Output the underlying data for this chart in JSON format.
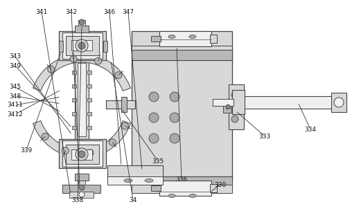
{
  "bg_color": "#ffffff",
  "lc": "#444444",
  "fc_light": "#f0f0f0",
  "fc_mid": "#d8d8d8",
  "fc_dark": "#b8b8b8",
  "figsize": [
    5.08,
    3.05
  ],
  "dpi": 100,
  "labels": [
    [
      "338",
      112,
      16
    ],
    [
      "34",
      192,
      16
    ],
    [
      "335",
      228,
      72
    ],
    [
      "336",
      265,
      45
    ],
    [
      "330",
      318,
      38
    ],
    [
      "333",
      382,
      108
    ],
    [
      "334",
      448,
      118
    ],
    [
      "339",
      38,
      88
    ],
    [
      "3412",
      22,
      140
    ],
    [
      "3411",
      22,
      153
    ],
    [
      "348",
      22,
      166
    ],
    [
      "345",
      22,
      179
    ],
    [
      "349",
      22,
      210
    ],
    [
      "343",
      22,
      223
    ],
    [
      "341",
      60,
      288
    ],
    [
      "342",
      103,
      288
    ],
    [
      "346",
      158,
      288
    ],
    [
      "347",
      185,
      288
    ]
  ]
}
